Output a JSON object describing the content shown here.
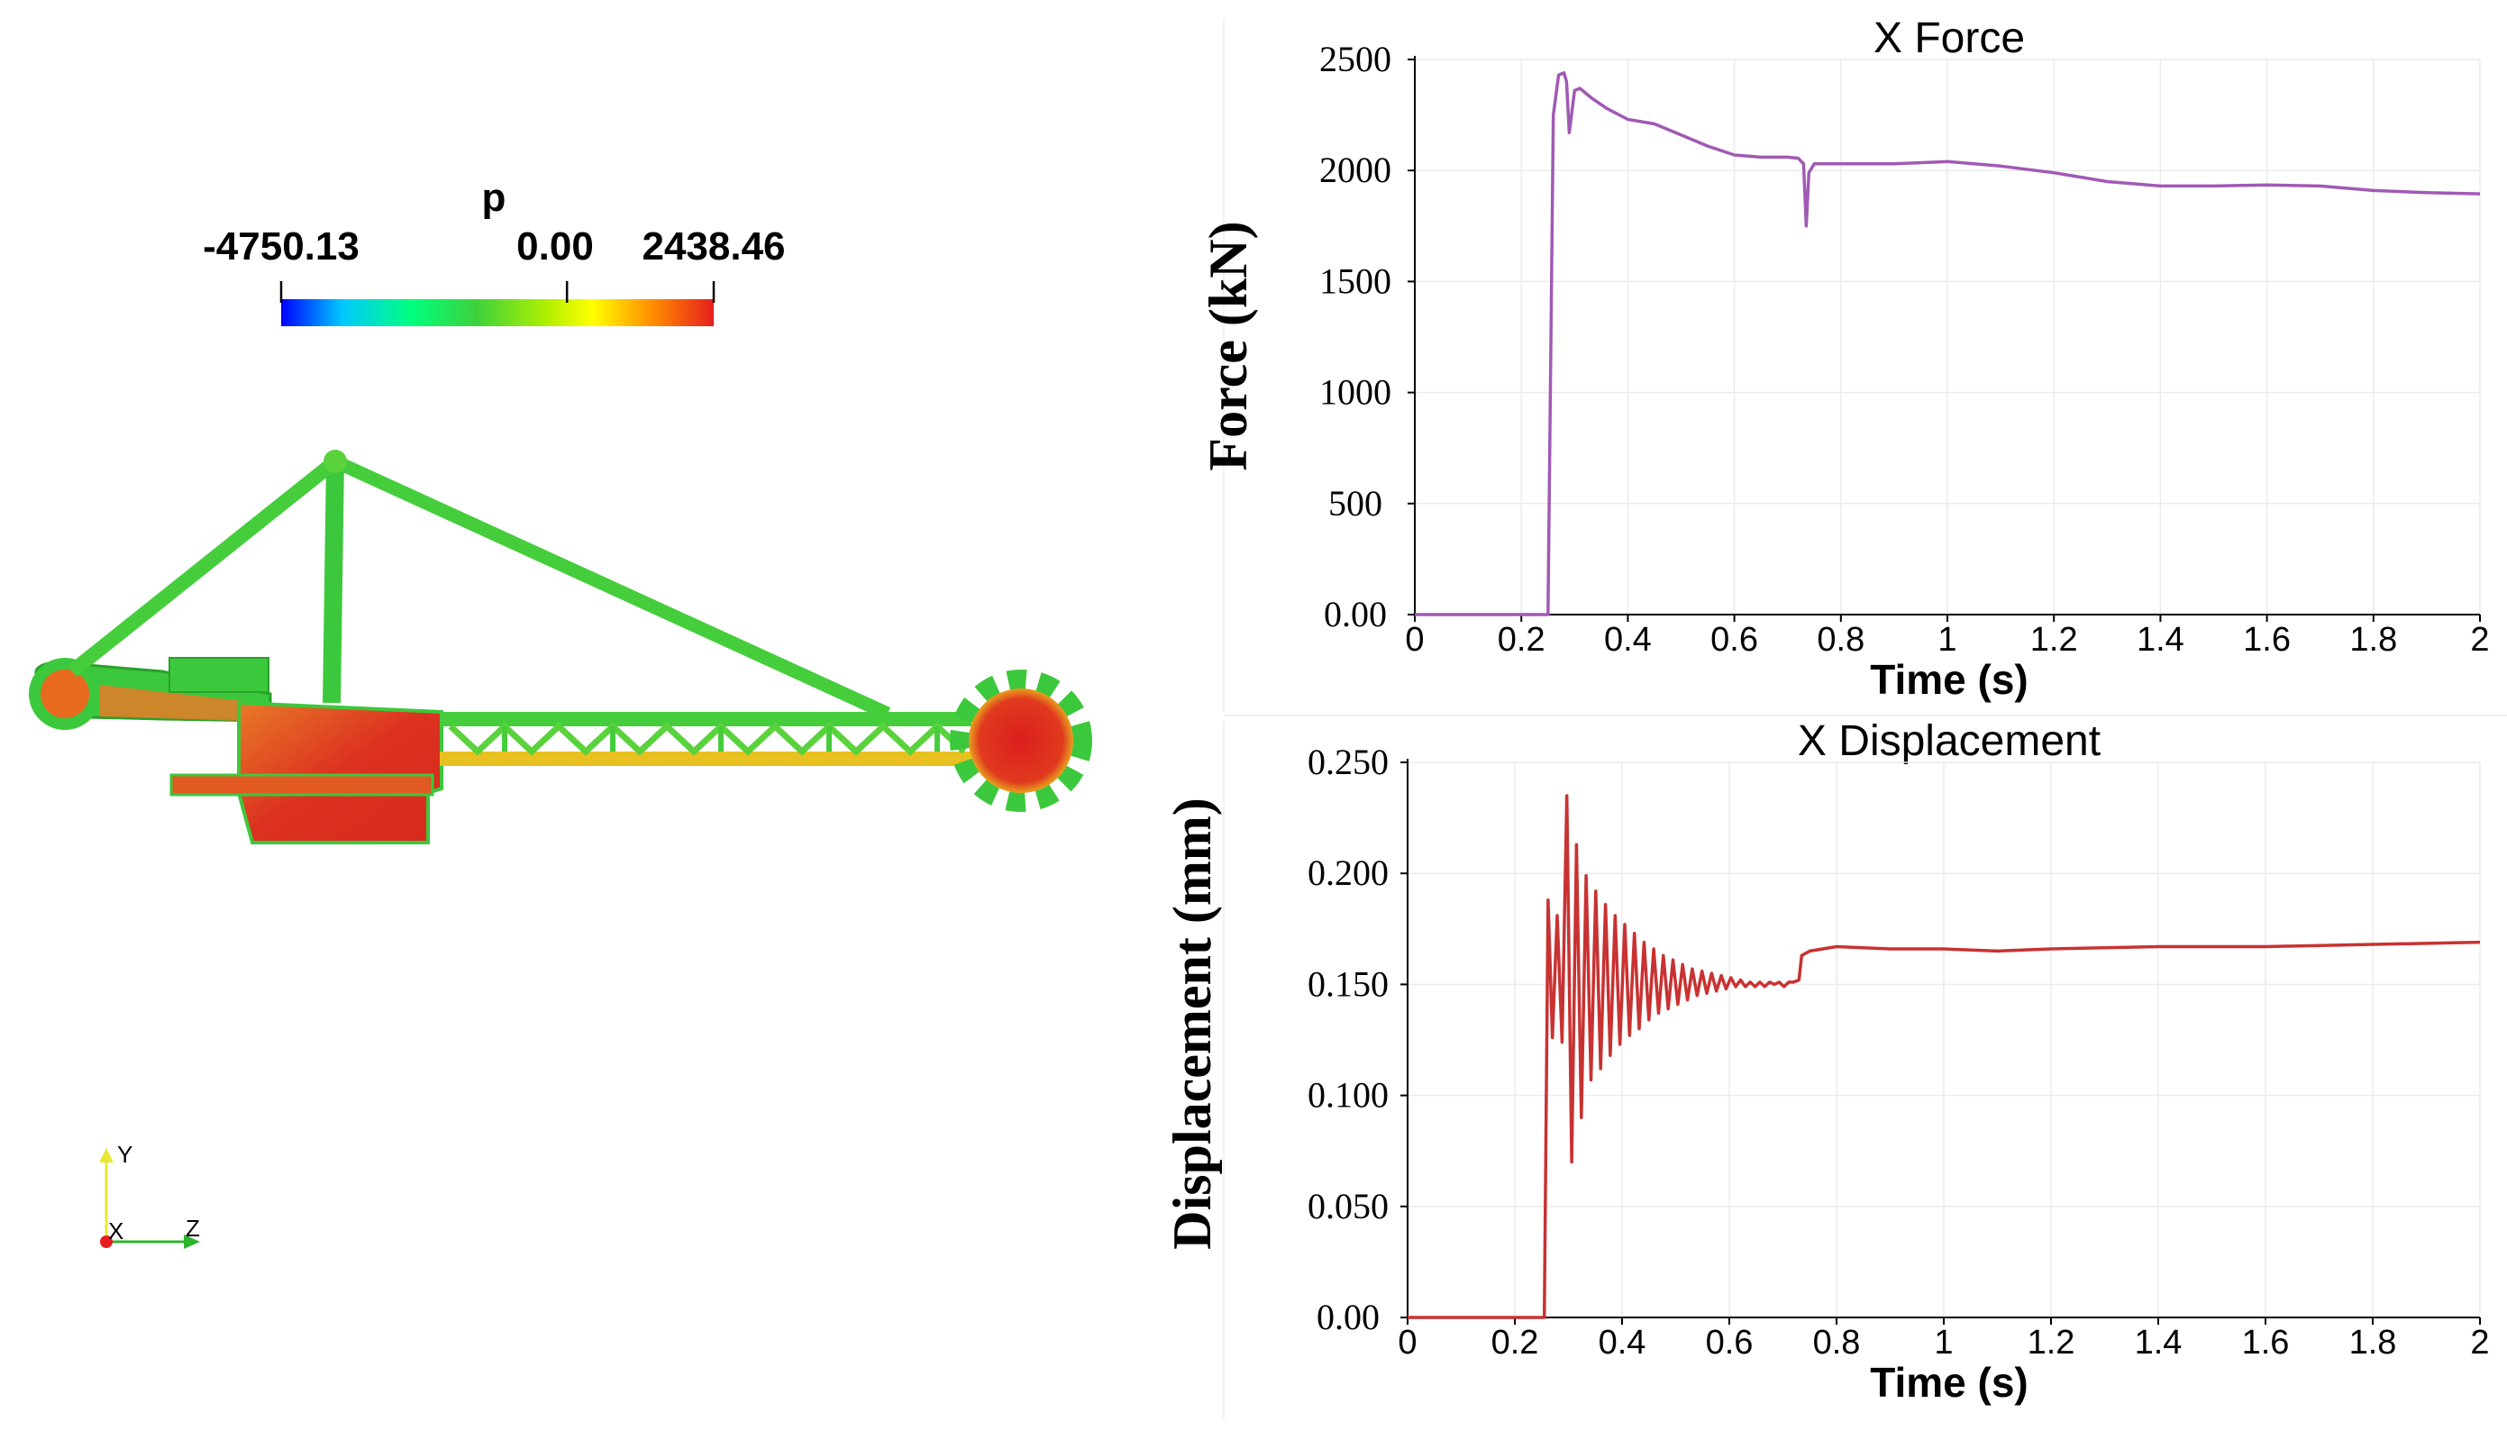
{
  "colors": {
    "force_line": "#a05ab4",
    "disp_line": "#c83232",
    "struct_green": "#3cc83c",
    "struct_red": "#dc1e1e",
    "struct_orange": "#e86a1e",
    "axis_y": "#e8e832",
    "axis_z": "#2db42d",
    "axis_x": "#e61e1e"
  },
  "colorbar": {
    "variable": "p",
    "min_label": "-4750.13",
    "mid_label": "0.00",
    "max_label": "2438.46",
    "min": -4750.13,
    "max": 2438.46,
    "stops": [
      "#0000ff",
      "#00c8ff",
      "#00ff7f",
      "#3cd23c",
      "#b4f000",
      "#ffff00",
      "#ff8c00",
      "#e61e1e"
    ]
  },
  "orientation_axes": {
    "y": "Y",
    "x": "X",
    "z": "Z"
  },
  "chart_data": [
    {
      "type": "line",
      "title": "X Force",
      "xlabel": "Time (s)",
      "ylabel": "Force (kN)",
      "xlim": [
        0,
        2
      ],
      "ylim": [
        0,
        2500
      ],
      "x_ticks": [
        0,
        0.2,
        0.4,
        0.6,
        0.8,
        1,
        1.2,
        1.4,
        1.6,
        1.8,
        2
      ],
      "x_tick_labels": [
        "0",
        "0.2",
        "0.4",
        "0.6",
        "0.8",
        "1",
        "1.2",
        "1.4",
        "1.6",
        "1.8",
        "2"
      ],
      "y_ticks": [
        0,
        500,
        1000,
        1500,
        2000,
        2500
      ],
      "y_tick_labels": [
        "0.00",
        "500",
        "1000",
        "1500",
        "2000",
        "2500"
      ],
      "series": [
        {
          "name": "X Force",
          "x": [
            0,
            0.24,
            0.25,
            0.26,
            0.27,
            0.28,
            0.285,
            0.29,
            0.3,
            0.31,
            0.33,
            0.36,
            0.4,
            0.45,
            0.5,
            0.55,
            0.6,
            0.65,
            0.7,
            0.72,
            0.73,
            0.735,
            0.74,
            0.75,
            0.8,
            0.9,
            1.0,
            1.1,
            1.2,
            1.3,
            1.4,
            1.5,
            1.6,
            1.7,
            1.8,
            1.9,
            2.0
          ],
          "values": [
            0,
            0,
            0,
            2250,
            2430,
            2440,
            2400,
            2170,
            2360,
            2370,
            2330,
            2280,
            2230,
            2210,
            2160,
            2110,
            2070,
            2060,
            2060,
            2055,
            2030,
            1750,
            1990,
            2030,
            2030,
            2030,
            2040,
            2020,
            1990,
            1950,
            1930,
            1930,
            1935,
            1930,
            1910,
            1900,
            1895
          ]
        }
      ]
    },
    {
      "type": "line",
      "title": "X Displacement",
      "xlabel": "Time (s)",
      "ylabel": "Displacement (mm)",
      "xlim": [
        0,
        2
      ],
      "ylim": [
        0,
        0.25
      ],
      "x_ticks": [
        0,
        0.2,
        0.4,
        0.6,
        0.8,
        1,
        1.2,
        1.4,
        1.6,
        1.8,
        2
      ],
      "x_tick_labels": [
        "0",
        "0.2",
        "0.4",
        "0.6",
        "0.8",
        "1",
        "1.2",
        "1.4",
        "1.6",
        "1.8",
        "2"
      ],
      "y_ticks": [
        0,
        0.05,
        0.1,
        0.15,
        0.2,
        0.25
      ],
      "y_tick_labels": [
        "0.00",
        "0.050",
        "0.100",
        "0.150",
        "0.200",
        "0.250"
      ],
      "series": [
        {
          "name": "X Displacement",
          "x": [
            0,
            0.245,
            0.255,
            0.262,
            0.27,
            0.279,
            0.288,
            0.297,
            0.306,
            0.315,
            0.324,
            0.333,
            0.342,
            0.351,
            0.36,
            0.369,
            0.378,
            0.387,
            0.396,
            0.405,
            0.414,
            0.423,
            0.432,
            0.441,
            0.45,
            0.459,
            0.468,
            0.477,
            0.486,
            0.495,
            0.504,
            0.513,
            0.522,
            0.531,
            0.54,
            0.549,
            0.558,
            0.567,
            0.576,
            0.585,
            0.594,
            0.603,
            0.612,
            0.621,
            0.63,
            0.639,
            0.648,
            0.657,
            0.666,
            0.675,
            0.684,
            0.693,
            0.702,
            0.711,
            0.72,
            0.73,
            0.735,
            0.75,
            0.8,
            0.9,
            1.0,
            1.1,
            1.2,
            1.4,
            1.6,
            1.8,
            2.0
          ],
          "values": [
            0,
            0,
            0,
            0.188,
            0.126,
            0.181,
            0.124,
            0.235,
            0.07,
            0.213,
            0.09,
            0.199,
            0.107,
            0.192,
            0.112,
            0.186,
            0.118,
            0.181,
            0.123,
            0.177,
            0.127,
            0.173,
            0.13,
            0.169,
            0.134,
            0.166,
            0.137,
            0.163,
            0.139,
            0.161,
            0.141,
            0.159,
            0.143,
            0.157,
            0.145,
            0.156,
            0.146,
            0.155,
            0.147,
            0.154,
            0.148,
            0.153,
            0.149,
            0.152,
            0.149,
            0.151,
            0.149,
            0.151,
            0.149,
            0.151,
            0.15,
            0.151,
            0.149,
            0.151,
            0.151,
            0.152,
            0.163,
            0.165,
            0.167,
            0.166,
            0.166,
            0.165,
            0.166,
            0.167,
            0.167,
            0.168,
            0.169
          ]
        }
      ]
    }
  ]
}
